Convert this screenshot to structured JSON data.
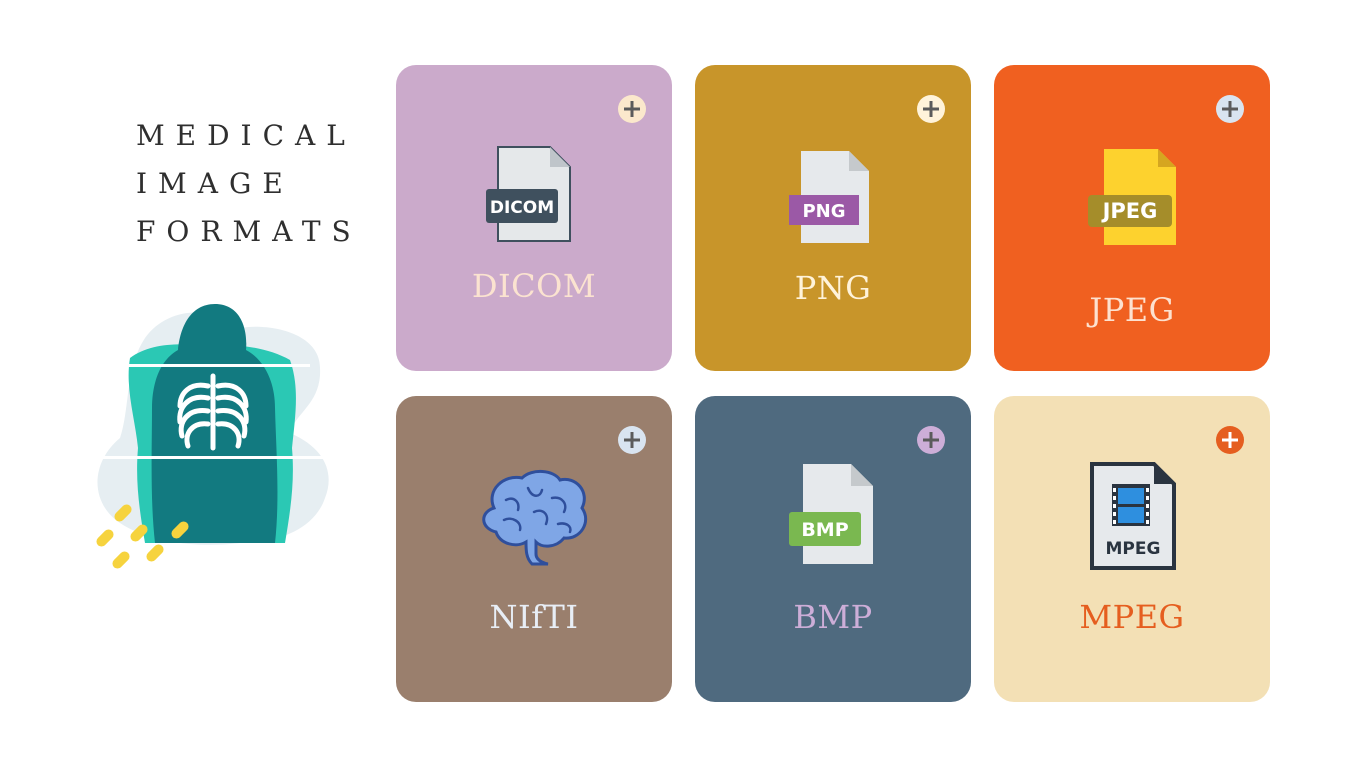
{
  "title": {
    "line1": "MEDICAL",
    "line2": "IMAGE",
    "line3": "FORMATS"
  },
  "colors": {
    "title_text": "#2f2f2f",
    "teal_light": "#2bc8b4",
    "teal_dark": "#127a80",
    "accent_yellow": "#f6d33e"
  },
  "cards": [
    {
      "label": "DICOM",
      "badge": "DICOM",
      "bg": "#cbaacb",
      "label_color": "#fbe3d0",
      "icon": "file-dicom-icon"
    },
    {
      "label": "PNG",
      "badge": "PNG",
      "bg": "#c8952a",
      "label_color": "#fff3da",
      "icon": "file-png-icon"
    },
    {
      "label": "JPEG",
      "badge": "JPEG",
      "bg": "#f06020",
      "label_color": "#fde1cf",
      "icon": "file-jpeg-icon"
    },
    {
      "label": "NIfTI",
      "bg": "#9a7f6d",
      "label_color": "#e8eef6",
      "icon": "brain-icon"
    },
    {
      "label": "BMP",
      "badge": "BMP",
      "bg": "#4f6a7f",
      "label_color": "#cdaed8",
      "icon": "file-bmp-icon"
    },
    {
      "label": "MPEG",
      "badge": "MPEG",
      "bg": "#f3e0b5",
      "label_color": "#e55e1f",
      "icon": "file-mpeg-icon"
    }
  ]
}
